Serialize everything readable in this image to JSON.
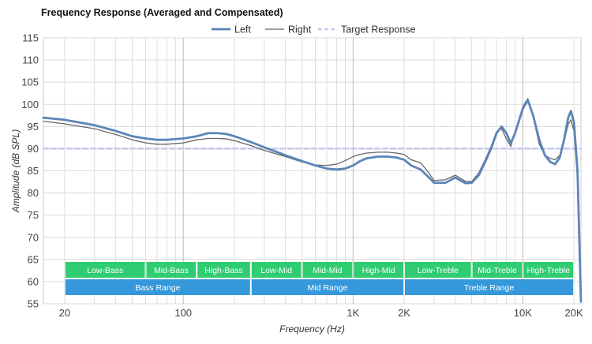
{
  "chart_data": {
    "type": "line",
    "title": "Frequency Response (Averaged and Compensated)",
    "xlabel": "Frequency (Hz)",
    "ylabel": "Amplitude (dB SPL)",
    "x_scale": "log",
    "xlim": [
      15,
      22000
    ],
    "ylim": [
      55,
      115
    ],
    "yticks": [
      55,
      60,
      65,
      70,
      75,
      80,
      85,
      90,
      95,
      100,
      105,
      110,
      115
    ],
    "xticks": [
      {
        "value": 20,
        "label": "20"
      },
      {
        "value": 100,
        "label": "100"
      },
      {
        "value": 1000,
        "label": "1K"
      },
      {
        "value": 2000,
        "label": "2K"
      },
      {
        "value": 10000,
        "label": "10K"
      },
      {
        "value": 20000,
        "label": "20K"
      }
    ],
    "grid": true,
    "legend_position": "top-center",
    "series": [
      {
        "name": "Left",
        "color": "#5b85b8",
        "style": "solid-thick",
        "points": [
          [
            15,
            97.0
          ],
          [
            20,
            96.5
          ],
          [
            30,
            95.3
          ],
          [
            40,
            94.0
          ],
          [
            50,
            92.8
          ],
          [
            60,
            92.3
          ],
          [
            70,
            92.0
          ],
          [
            80,
            92.0
          ],
          [
            100,
            92.3
          ],
          [
            120,
            92.8
          ],
          [
            140,
            93.5
          ],
          [
            160,
            93.5
          ],
          [
            180,
            93.3
          ],
          [
            200,
            92.8
          ],
          [
            250,
            91.5
          ],
          [
            300,
            90.3
          ],
          [
            400,
            88.5
          ],
          [
            500,
            87.2
          ],
          [
            600,
            86.2
          ],
          [
            700,
            85.5
          ],
          [
            800,
            85.3
          ],
          [
            900,
            85.5
          ],
          [
            1000,
            86.2
          ],
          [
            1100,
            87.2
          ],
          [
            1200,
            87.8
          ],
          [
            1400,
            88.2
          ],
          [
            1600,
            88.2
          ],
          [
            1800,
            88.0
          ],
          [
            2000,
            87.5
          ],
          [
            2200,
            86.2
          ],
          [
            2500,
            85.3
          ],
          [
            2800,
            83.5
          ],
          [
            3000,
            82.3
          ],
          [
            3500,
            82.3
          ],
          [
            4000,
            83.5
          ],
          [
            4300,
            82.8
          ],
          [
            4600,
            82.2
          ],
          [
            5000,
            82.3
          ],
          [
            5500,
            84.0
          ],
          [
            6000,
            87.0
          ],
          [
            6500,
            90.0
          ],
          [
            7000,
            93.5
          ],
          [
            7500,
            95.0
          ],
          [
            8000,
            93.5
          ],
          [
            8500,
            91.2
          ],
          [
            9000,
            93.5
          ],
          [
            10000,
            99.0
          ],
          [
            10700,
            101.0
          ],
          [
            11500,
            97.5
          ],
          [
            12500,
            92.0
          ],
          [
            13500,
            88.5
          ],
          [
            14500,
            87.0
          ],
          [
            15500,
            86.5
          ],
          [
            16500,
            88.0
          ],
          [
            17500,
            92.0
          ],
          [
            18500,
            97.0
          ],
          [
            19200,
            98.5
          ],
          [
            20000,
            96.0
          ],
          [
            21000,
            85.0
          ],
          [
            22000,
            55.5
          ]
        ]
      },
      {
        "name": "Right",
        "color": "#666666",
        "style": "solid-thin",
        "points": [
          [
            15,
            96.2
          ],
          [
            20,
            95.6
          ],
          [
            30,
            94.5
          ],
          [
            40,
            93.2
          ],
          [
            50,
            92.0
          ],
          [
            60,
            91.3
          ],
          [
            70,
            91.0
          ],
          [
            80,
            91.0
          ],
          [
            100,
            91.3
          ],
          [
            120,
            92.0
          ],
          [
            140,
            92.3
          ],
          [
            160,
            92.3
          ],
          [
            180,
            92.2
          ],
          [
            200,
            91.8
          ],
          [
            250,
            90.7
          ],
          [
            300,
            89.6
          ],
          [
            400,
            88.2
          ],
          [
            500,
            87.0
          ],
          [
            600,
            86.3
          ],
          [
            700,
            86.2
          ],
          [
            800,
            86.5
          ],
          [
            900,
            87.3
          ],
          [
            1000,
            88.2
          ],
          [
            1100,
            88.7
          ],
          [
            1200,
            89.0
          ],
          [
            1400,
            89.2
          ],
          [
            1600,
            89.2
          ],
          [
            1800,
            89.0
          ],
          [
            2000,
            88.7
          ],
          [
            2200,
            87.5
          ],
          [
            2500,
            86.8
          ],
          [
            2800,
            84.5
          ],
          [
            3000,
            82.8
          ],
          [
            3500,
            83.0
          ],
          [
            4000,
            84.0
          ],
          [
            4300,
            83.3
          ],
          [
            4600,
            82.6
          ],
          [
            5000,
            82.6
          ],
          [
            5500,
            84.5
          ],
          [
            6000,
            87.5
          ],
          [
            6500,
            90.5
          ],
          [
            7000,
            93.8
          ],
          [
            7500,
            94.5
          ],
          [
            8000,
            92.2
          ],
          [
            8500,
            90.5
          ],
          [
            9000,
            93.8
          ],
          [
            10000,
            99.5
          ],
          [
            10700,
            101.3
          ],
          [
            11500,
            97.2
          ],
          [
            12500,
            91.0
          ],
          [
            13500,
            88.5
          ],
          [
            14500,
            87.8
          ],
          [
            15500,
            87.5
          ],
          [
            16500,
            88.5
          ],
          [
            17500,
            91.5
          ],
          [
            18500,
            95.5
          ],
          [
            19200,
            96.5
          ],
          [
            20000,
            94.0
          ],
          [
            21000,
            83.0
          ],
          [
            22000,
            55.5
          ]
        ]
      },
      {
        "name": "Target Response",
        "color": "#c5c8ee",
        "style": "dashed",
        "points": [
          [
            15,
            90
          ],
          [
            22000,
            90
          ]
        ]
      }
    ],
    "bands_top": [
      {
        "label": "Low-Bass",
        "from": 20,
        "to": 60
      },
      {
        "label": "Mid-Bass",
        "from": 60,
        "to": 120
      },
      {
        "label": "High-Bass",
        "from": 120,
        "to": 250
      },
      {
        "label": "Low-Mid",
        "from": 250,
        "to": 500
      },
      {
        "label": "Mid-Mid",
        "from": 500,
        "to": 1000
      },
      {
        "label": "High-Mid",
        "from": 1000,
        "to": 2000
      },
      {
        "label": "Low-Treble",
        "from": 2000,
        "to": 5000
      },
      {
        "label": "Mid-Treble",
        "from": 5000,
        "to": 10000
      },
      {
        "label": "High-Treble",
        "from": 10000,
        "to": 20000
      }
    ],
    "bands_bottom": [
      {
        "label": "Bass Range",
        "from": 20,
        "to": 250
      },
      {
        "label": "Mid Range",
        "from": 250,
        "to": 2000
      },
      {
        "label": "Treble Range",
        "from": 2000,
        "to": 20000
      }
    ],
    "band_colors": {
      "top": "#2fcc71",
      "bottom": "#3498db"
    }
  }
}
